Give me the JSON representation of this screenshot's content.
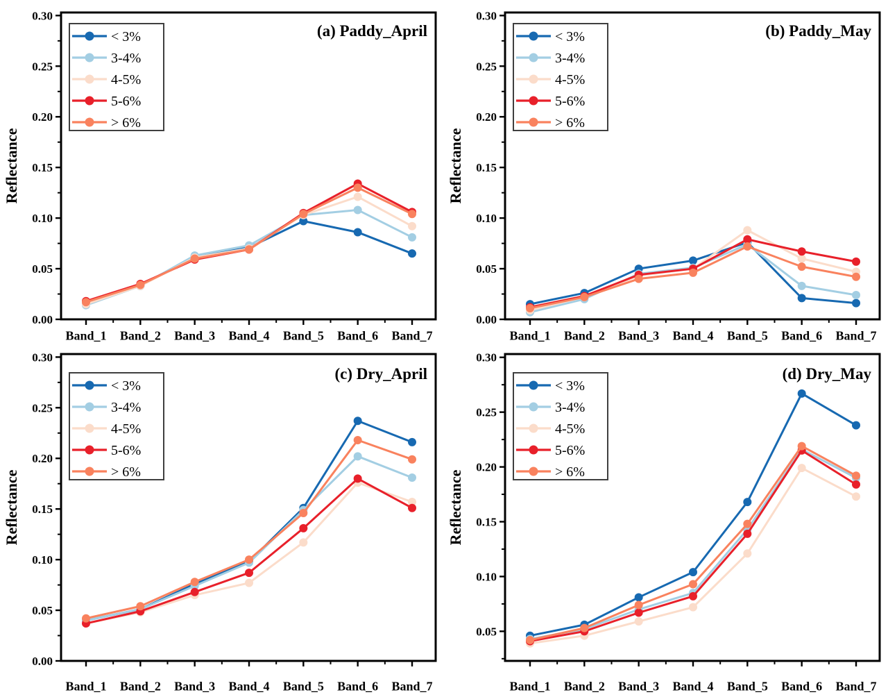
{
  "figure": {
    "description": "2x2 grid of reflectance spectra line charts by soil organic matter class",
    "ylabel": "Reflectance",
    "legend_labels": [
      "< 3%",
      "3-4%",
      "4-5%",
      "5-6%",
      "> 6%"
    ],
    "colors": {
      "lt3": "#1769b1",
      "c34": "#a3cee3",
      "c45": "#fbdcca",
      "c56": "#e8202a",
      "gt6": "#f9825e",
      "axis": "#000000",
      "legend_border": "#3f3f3f"
    }
  },
  "chart_data": [
    {
      "type": "line",
      "panel": "a",
      "title": "(a) Paddy_April",
      "ylabel": "Reflectance",
      "categories": [
        "Band_1",
        "Band_2",
        "Band_3",
        "Band_4",
        "Band_5",
        "Band_6",
        "Band_7"
      ],
      "ylim": [
        0,
        0.303
      ],
      "yticks": [
        0,
        0.05,
        0.1,
        0.15,
        0.2,
        0.25,
        0.3
      ],
      "ytick_labels": [
        "0.00",
        "0.05",
        "0.10",
        "0.15",
        "0.20",
        "0.25",
        "0.30"
      ],
      "grid": false,
      "legend_position": "top-left",
      "series": [
        {
          "name": "< 3%",
          "color": "#1769b1",
          "values": [
            0.015,
            0.033,
            0.062,
            0.071,
            0.097,
            0.086,
            0.065
          ]
        },
        {
          "name": "3-4%",
          "color": "#a3cee3",
          "values": [
            0.014,
            0.033,
            0.063,
            0.073,
            0.103,
            0.108,
            0.081
          ]
        },
        {
          "name": "4-5%",
          "color": "#fbdcca",
          "values": [
            0.015,
            0.033,
            0.061,
            0.07,
            0.103,
            0.121,
            0.092
          ]
        },
        {
          "name": "5-6%",
          "color": "#e8202a",
          "values": [
            0.018,
            0.035,
            0.059,
            0.069,
            0.105,
            0.134,
            0.106
          ]
        },
        {
          "name": "> 6%",
          "color": "#f9825e",
          "values": [
            0.017,
            0.034,
            0.06,
            0.069,
            0.104,
            0.13,
            0.104
          ]
        }
      ]
    },
    {
      "type": "line",
      "panel": "b",
      "title": "(b) Paddy_May",
      "ylabel": "Reflectance",
      "categories": [
        "Band_1",
        "Band_2",
        "Band_3",
        "Band_4",
        "Band_5",
        "Band_6",
        "Band_7"
      ],
      "ylim": [
        0,
        0.303
      ],
      "yticks": [
        0,
        0.05,
        0.1,
        0.15,
        0.2,
        0.25,
        0.3
      ],
      "ytick_labels": [
        "0.00",
        "0.05",
        "0.10",
        "0.15",
        "0.20",
        "0.25",
        "0.30"
      ],
      "grid": false,
      "legend_position": "top-left",
      "series": [
        {
          "name": "< 3%",
          "color": "#1769b1",
          "values": [
            0.015,
            0.026,
            0.05,
            0.058,
            0.076,
            0.021,
            0.016
          ]
        },
        {
          "name": "3-4%",
          "color": "#a3cee3",
          "values": [
            0.007,
            0.02,
            0.045,
            0.051,
            0.074,
            0.033,
            0.024
          ]
        },
        {
          "name": "4-5%",
          "color": "#fbdcca",
          "values": [
            0.009,
            0.022,
            0.043,
            0.05,
            0.088,
            0.06,
            0.047
          ]
        },
        {
          "name": "5-6%",
          "color": "#e8202a",
          "values": [
            0.012,
            0.023,
            0.044,
            0.05,
            0.079,
            0.067,
            0.057
          ]
        },
        {
          "name": "> 6%",
          "color": "#f9825e",
          "values": [
            0.011,
            0.022,
            0.04,
            0.046,
            0.072,
            0.052,
            0.042
          ]
        }
      ]
    },
    {
      "type": "line",
      "panel": "c",
      "title": "(c) Dry_April",
      "ylabel": "Reflectance",
      "categories": [
        "Band_1",
        "Band_2",
        "Band_3",
        "Band_4",
        "Band_5",
        "Band_6",
        "Band_7"
      ],
      "ylim": [
        0,
        0.303
      ],
      "yticks": [
        0,
        0.05,
        0.1,
        0.15,
        0.2,
        0.25,
        0.3
      ],
      "ytick_labels": [
        "0.00",
        "0.05",
        "0.10",
        "0.15",
        "0.20",
        "0.25",
        "0.30"
      ],
      "grid": false,
      "legend_position": "top-left",
      "series": [
        {
          "name": "< 3%",
          "color": "#1769b1",
          "values": [
            0.04,
            0.051,
            0.076,
            0.098,
            0.151,
            0.237,
            0.216
          ]
        },
        {
          "name": "3-4%",
          "color": "#a3cee3",
          "values": [
            0.04,
            0.051,
            0.074,
            0.097,
            0.149,
            0.202,
            0.181
          ]
        },
        {
          "name": "4-5%",
          "color": "#fbdcca",
          "values": [
            0.037,
            0.048,
            0.065,
            0.077,
            0.117,
            0.176,
            0.157
          ]
        },
        {
          "name": "5-6%",
          "color": "#e8202a",
          "values": [
            0.037,
            0.049,
            0.068,
            0.087,
            0.131,
            0.18,
            0.151
          ]
        },
        {
          "name": "> 6%",
          "color": "#f9825e",
          "values": [
            0.042,
            0.054,
            0.078,
            0.1,
            0.146,
            0.218,
            0.199
          ]
        }
      ]
    },
    {
      "type": "line",
      "panel": "d",
      "title": "(d) Dry_May",
      "ylabel": "Reflectance",
      "categories": [
        "Band_1",
        "Band_2",
        "Band_3",
        "Band_4",
        "Band_5",
        "Band_6",
        "Band_7"
      ],
      "ylim": [
        0.023,
        0.303
      ],
      "yticks": [
        0.05,
        0.1,
        0.15,
        0.2,
        0.25,
        0.3
      ],
      "ytick_labels": [
        "0.05",
        "0.10",
        "0.15",
        "0.20",
        "0.25",
        "0.30"
      ],
      "grid": false,
      "legend_position": "top-left",
      "series": [
        {
          "name": "< 3%",
          "color": "#1769b1",
          "values": [
            0.046,
            0.056,
            0.081,
            0.104,
            0.168,
            0.267,
            0.238
          ]
        },
        {
          "name": "3-4%",
          "color": "#a3cee3",
          "values": [
            0.043,
            0.052,
            0.07,
            0.085,
            0.143,
            0.216,
            0.19
          ]
        },
        {
          "name": "4-5%",
          "color": "#fbdcca",
          "values": [
            0.039,
            0.046,
            0.059,
            0.072,
            0.121,
            0.199,
            0.173
          ]
        },
        {
          "name": "5-6%",
          "color": "#e8202a",
          "values": [
            0.041,
            0.05,
            0.067,
            0.082,
            0.139,
            0.215,
            0.184
          ]
        },
        {
          "name": "> 6%",
          "color": "#f9825e",
          "values": [
            0.042,
            0.053,
            0.074,
            0.093,
            0.148,
            0.219,
            0.192
          ]
        }
      ]
    }
  ]
}
